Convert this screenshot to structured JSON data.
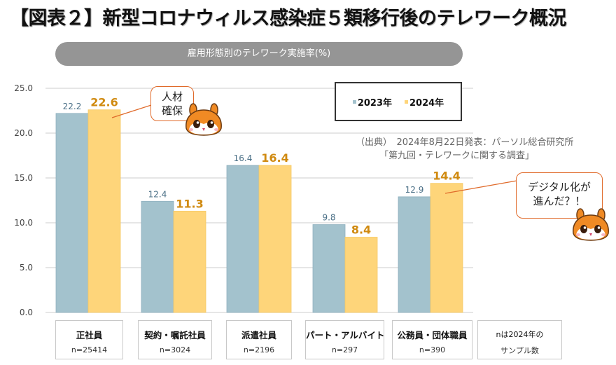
{
  "title": "【図表２】新型コロナウィルス感染症５類移行後のテレワーク概況",
  "subtitle": "雇用形態別のテレワーク実施率(%)",
  "legend": [
    {
      "label": "2023年",
      "color": "#a3c2cd"
    },
    {
      "label": "2024年",
      "color": "#fed57a"
    }
  ],
  "source": {
    "line1": "（出典）　2024年8月22日発表：パーソル総合研究所",
    "line2": "「第九回・テレワークに関する調査」"
  },
  "callouts": [
    {
      "text_line1": "人材",
      "text_line2": "確保",
      "icon": "squirrel-mascot-icon"
    },
    {
      "text_line1": "デジタル化が",
      "text_line2": "進んだ？！",
      "icon": "squirrel-mascot-icon"
    }
  ],
  "categories": [
    {
      "name": "正社員",
      "n": "n=25414"
    },
    {
      "name": "契約・嘱託社員",
      "n": "n=3024"
    },
    {
      "name": "派遣社員",
      "n": "n=2196"
    },
    {
      "name": "パート・アルバイト",
      "n": "n=297"
    },
    {
      "name": "公務員・団体職員",
      "n": "n=390"
    }
  ],
  "note": {
    "line1": "nは2024年の",
    "line2": "サンプル数"
  },
  "chart_data": {
    "type": "bar",
    "title": "雇用形態別のテレワーク実施率(%)",
    "categories": [
      "正社員",
      "契約・嘱託社員",
      "派遣社員",
      "パート・アルバイト",
      "公務員・団体職員"
    ],
    "series": [
      {
        "name": "2023年",
        "values": [
          22.2,
          12.4,
          16.4,
          9.8,
          12.9
        ],
        "labels": [
          "22.2",
          "12.4",
          "16.4",
          "9.8",
          "12.9"
        ]
      },
      {
        "name": "2024年",
        "values": [
          22.6,
          11.3,
          16.4,
          8.4,
          14.4
        ],
        "labels": [
          "22.6",
          "11.3",
          "16.4",
          "8.4",
          "14.4"
        ]
      }
    ],
    "ylim": [
      0,
      25
    ],
    "yticks": [
      "0.0",
      "5.0",
      "10.0",
      "15.0",
      "20.0",
      "25.0"
    ],
    "ytick_values": [
      0,
      5,
      10,
      15,
      20,
      25
    ],
    "grid": true,
    "legend_position": "top-right",
    "xlabel": "",
    "ylabel": ""
  }
}
